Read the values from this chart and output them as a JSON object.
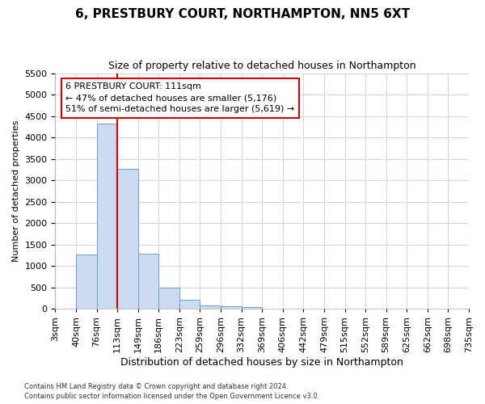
{
  "title": "6, PRESTBURY COURT, NORTHAMPTON, NN5 6XT",
  "subtitle": "Size of property relative to detached houses in Northampton",
  "xlabel": "Distribution of detached houses by size in Northampton",
  "ylabel": "Number of detached properties",
  "footnote1": "Contains HM Land Registry data © Crown copyright and database right 2024.",
  "footnote2": "Contains public sector information licensed under the Open Government Licence v3.0.",
  "bin_labels": [
    "3sqm",
    "40sqm",
    "76sqm",
    "113sqm",
    "149sqm",
    "186sqm",
    "223sqm",
    "259sqm",
    "296sqm",
    "332sqm",
    "369sqm",
    "406sqm",
    "442sqm",
    "479sqm",
    "515sqm",
    "552sqm",
    "589sqm",
    "625sqm",
    "662sqm",
    "698sqm",
    "735sqm"
  ],
  "bar_values": [
    0,
    1260,
    4330,
    3260,
    1280,
    490,
    220,
    90,
    60,
    50,
    0,
    0,
    0,
    0,
    0,
    0,
    0,
    0,
    0,
    0
  ],
  "bar_color": "#ccdcf0",
  "bar_edge_color": "#6aa0d0",
  "grid_color": "#d0d8ea",
  "background_color": "#ffffff",
  "plot_bg_color": "#ffffff",
  "vline_color": "#cc0000",
  "vline_x": 3.0,
  "annotation_line1": "6 PRESTBURY COURT: 111sqm",
  "annotation_line2": "← 47% of detached houses are smaller (5,176)",
  "annotation_line3": "51% of semi-detached houses are larger (5,619) →",
  "annotation_box_color": "#ffffff",
  "annotation_box_edge": "#cc0000",
  "ylim": [
    0,
    5500
  ],
  "yticks": [
    0,
    500,
    1000,
    1500,
    2000,
    2500,
    3000,
    3500,
    4000,
    4500,
    5000,
    5500
  ],
  "title_fontsize": 11,
  "subtitle_fontsize": 9,
  "xlabel_fontsize": 9,
  "ylabel_fontsize": 8,
  "tick_fontsize": 8
}
